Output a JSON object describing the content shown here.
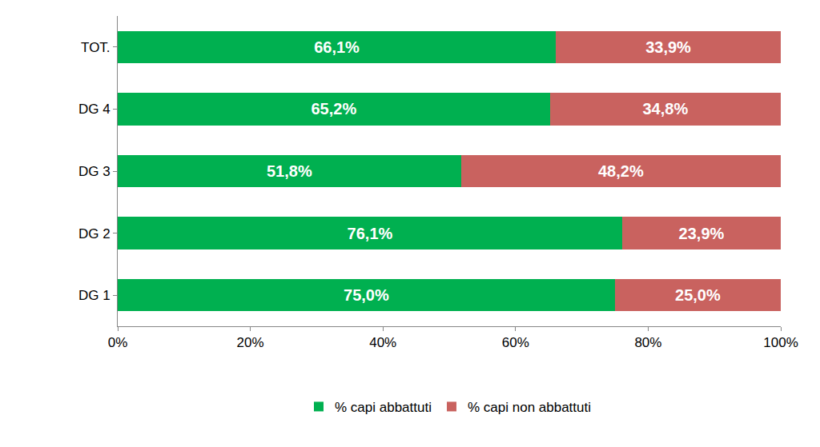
{
  "chart_data": {
    "type": "bar",
    "orientation": "horizontal",
    "stacked": true,
    "data_labels": true,
    "grid": false,
    "legend": "bottom",
    "categories": [
      "DG 1",
      "DG 2",
      "DG 3",
      "DG 4",
      "TOT."
    ],
    "series": [
      {
        "name": "% capi abbattuti",
        "color": "#00b050",
        "values": [
          75.0,
          76.1,
          51.8,
          65.2,
          66.1
        ],
        "value_labels": [
          "75,0%",
          "76,1%",
          "51,8%",
          "65,2%",
          "66,1%"
        ]
      },
      {
        "name": "% capi non abbattuti",
        "color": "#c9625f",
        "values": [
          25.0,
          23.9,
          48.2,
          34.8,
          33.9
        ],
        "value_labels": [
          "25,0%",
          "23,9%",
          "48,2%",
          "34,8%",
          "33,9%"
        ]
      }
    ],
    "xlim": [
      0,
      100
    ],
    "xticks": [
      {
        "value": 0,
        "label": "0%"
      },
      {
        "value": 20,
        "label": "20%"
      },
      {
        "value": 40,
        "label": "40%"
      },
      {
        "value": 60,
        "label": "60%"
      },
      {
        "value": 80,
        "label": "80%"
      },
      {
        "value": 100,
        "label": "100%"
      }
    ]
  }
}
